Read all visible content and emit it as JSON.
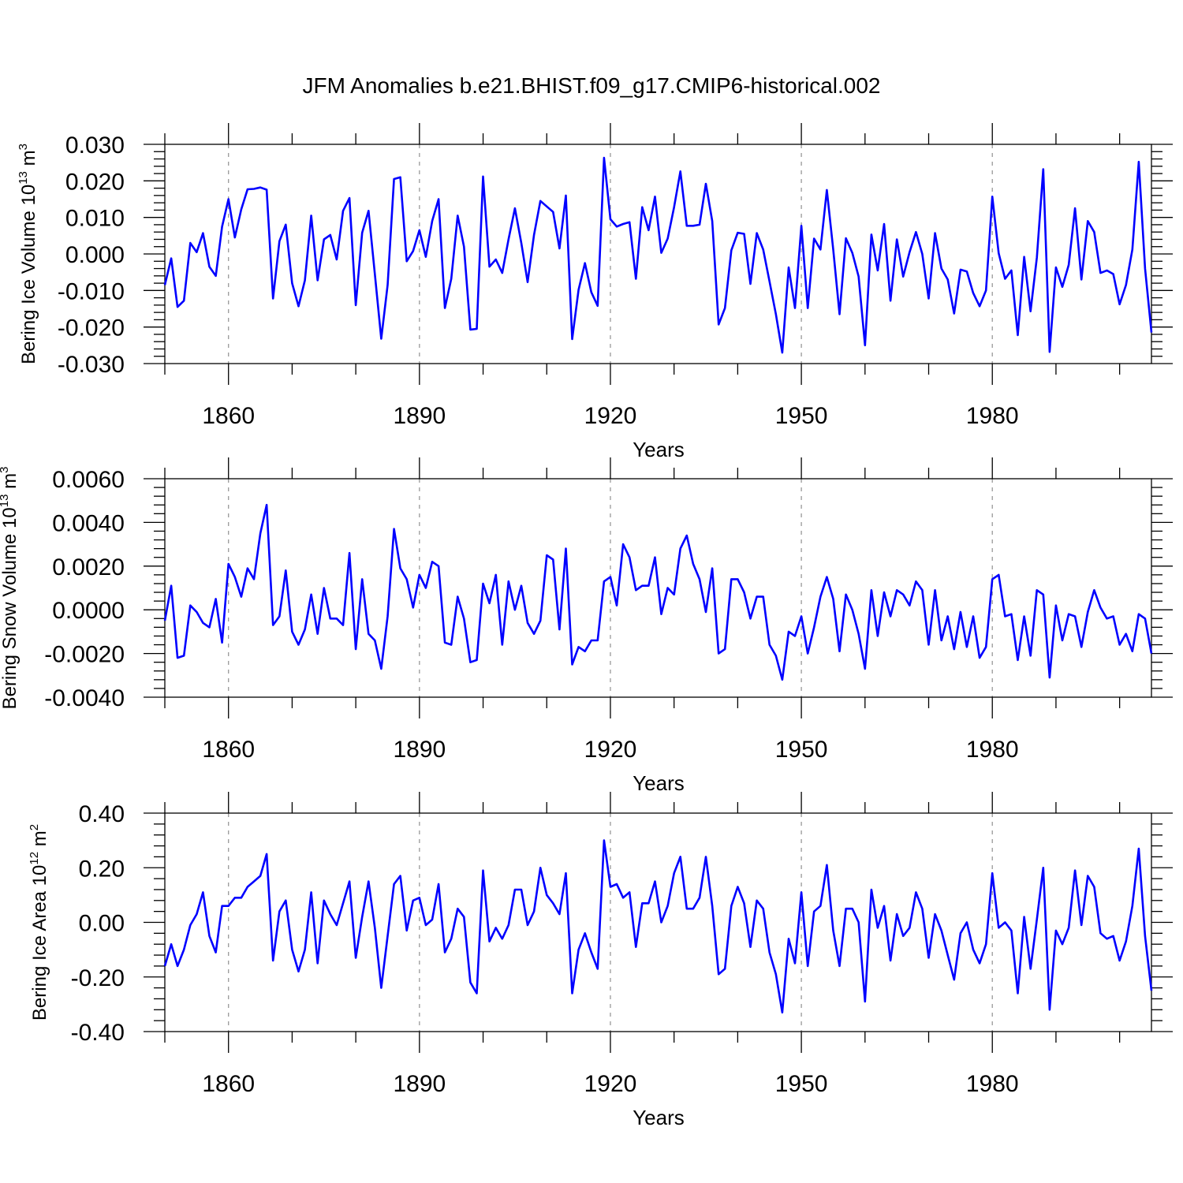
{
  "title": "JFM Anomalies b.e21.BHIST.f09_g17.CMIP6-historical.002",
  "chart_data": [
    {
      "type": "line",
      "id": "ice-volume",
      "ylabel": "Bering Ice Volume 10",
      "ylabel_sup": "13",
      "ylabel_unit": " m",
      "ylabel_unit_sup": "3",
      "xlabel": "Years",
      "xlim": [
        1850,
        2005
      ],
      "ylim": [
        -0.03,
        0.03
      ],
      "xticks": [
        1860,
        1890,
        1920,
        1950,
        1980
      ],
      "xtick_labels": [
        "1860",
        "1890",
        "1920",
        "1950",
        "1980"
      ],
      "yticks": [
        -0.03,
        -0.02,
        -0.01,
        0.0,
        0.01,
        0.02,
        0.03
      ],
      "ytick_labels": [
        "-0.030",
        "-0.020",
        "-0.010",
        "0.000",
        "0.010",
        "0.020",
        "0.030"
      ],
      "dashed_verticals": [
        1860,
        1890,
        1920,
        1950,
        1980
      ],
      "series": [
        {
          "name": "ice volume",
          "color": "#0000ff",
          "values": [
            -0.0085,
            -0.0012,
            -0.0145,
            -0.0128,
            0.003,
            0.0005,
            0.0057,
            -0.0035,
            -0.006,
            0.0075,
            0.015,
            0.0045,
            0.0122,
            0.0177,
            0.0178,
            0.0182,
            0.0176,
            -0.0122,
            0.0035,
            0.008,
            -0.008,
            -0.0143,
            -0.0072,
            0.0105,
            -0.0072,
            0.004,
            0.0052,
            -0.0015,
            0.0118,
            0.0153,
            -0.014,
            0.0058,
            0.0118,
            -0.0055,
            -0.0232,
            -0.0085,
            0.0205,
            0.021,
            -0.002,
            0.0008,
            0.0065,
            -0.0008,
            0.009,
            0.015,
            -0.0148,
            -0.0068,
            0.0105,
            0.002,
            -0.0207,
            -0.0205,
            0.0212,
            -0.0035,
            -0.0015,
            -0.0052,
            0.004,
            0.0125,
            0.003,
            -0.0077,
            0.0052,
            0.0145,
            0.013,
            0.0115,
            0.0015,
            0.016,
            -0.0233,
            -0.0098,
            -0.0025,
            -0.0105,
            -0.0142,
            0.0263,
            0.0095,
            0.0075,
            0.0082,
            0.0087,
            -0.0068,
            0.0128,
            0.0065,
            0.0157,
            0.0003,
            0.0042,
            0.0128,
            0.0226,
            0.0077,
            0.0077,
            0.008,
            0.0192,
            0.009,
            -0.0193,
            -0.0148,
            0.001,
            0.0058,
            0.0055,
            -0.0082,
            0.0057,
            0.0012,
            -0.0075,
            -0.0165,
            -0.027,
            -0.0037,
            -0.0148,
            0.0077,
            -0.0148,
            0.0042,
            0.0012,
            0.0175,
            0.0012,
            -0.0165,
            0.0043,
            0.0003,
            -0.0062,
            -0.025,
            0.0053,
            -0.0045,
            0.0082,
            -0.0128,
            0.004,
            -0.0062,
            0.0005,
            0.006,
            0.0,
            -0.0122,
            0.0057,
            -0.004,
            -0.007,
            -0.0163,
            -0.0043,
            -0.0048,
            -0.0107,
            -0.0143,
            -0.01,
            0.0157,
            0.0002,
            -0.0068,
            -0.0045,
            -0.0222,
            -0.0008,
            -0.0157,
            -0.001,
            0.0232,
            -0.0268,
            -0.0037,
            -0.009,
            -0.003,
            0.0125,
            -0.007,
            0.009,
            0.006,
            -0.0052,
            -0.0045,
            -0.0055,
            -0.0138,
            -0.0085,
            0.0012,
            0.0252,
            -0.004,
            -0.0215
          ]
        }
      ]
    },
    {
      "type": "line",
      "id": "snow-volume",
      "ylabel": "Bering Snow Volume 10",
      "ylabel_sup": "13",
      "ylabel_unit": " m",
      "ylabel_unit_sup": "3",
      "xlabel": "Years",
      "xlim": [
        1850,
        2005
      ],
      "ylim": [
        -0.004,
        0.006
      ],
      "xticks": [
        1860,
        1890,
        1920,
        1950,
        1980
      ],
      "xtick_labels": [
        "1860",
        "1890",
        "1920",
        "1950",
        "1980"
      ],
      "yticks": [
        -0.004,
        -0.002,
        0.0,
        0.002,
        0.004,
        0.006
      ],
      "ytick_labels": [
        "-0.0040",
        "-0.0020",
        "0.0000",
        "0.0020",
        "0.0040",
        "0.0060"
      ],
      "dashed_verticals": [
        1860,
        1890,
        1920,
        1950,
        1980
      ],
      "series": [
        {
          "name": "snow volume",
          "color": "#0000ff",
          "values": [
            -0.0005,
            0.0011,
            -0.0022,
            -0.0021,
            0.0002,
            -0.0001,
            -0.0006,
            -0.0008,
            0.0005,
            -0.0015,
            0.0021,
            0.0015,
            0.0006,
            0.0019,
            0.0014,
            0.0035,
            0.0048,
            -0.0007,
            -0.0003,
            0.0018,
            -0.001,
            -0.0016,
            -0.0009,
            0.0007,
            -0.0011,
            0.001,
            -0.0004,
            -0.0004,
            -0.0007,
            0.0026,
            -0.0018,
            0.0014,
            -0.0011,
            -0.0014,
            -0.0027,
            -0.0003,
            0.0037,
            0.0019,
            0.0014,
            0.0001,
            0.0016,
            0.001,
            0.0022,
            0.002,
            -0.0015,
            -0.0016,
            0.0006,
            -0.0004,
            -0.0024,
            -0.0023,
            0.0012,
            0.0003,
            0.0016,
            -0.0016,
            0.0013,
            0.0,
            0.0011,
            -0.0006,
            -0.0011,
            -0.0005,
            0.0025,
            0.0023,
            -0.0009,
            0.0028,
            -0.0025,
            -0.0017,
            -0.0019,
            -0.0014,
            -0.0014,
            0.0013,
            0.0015,
            0.0002,
            0.003,
            0.0024,
            0.0009,
            0.0011,
            0.0011,
            0.0024,
            -0.0002,
            0.001,
            0.0007,
            0.0028,
            0.0034,
            0.0021,
            0.0014,
            -0.0001,
            0.0019,
            -0.002,
            -0.0018,
            0.0014,
            0.0014,
            0.0008,
            -0.0004,
            0.0006,
            0.0006,
            -0.0016,
            -0.0021,
            -0.0032,
            -0.001,
            -0.0012,
            -0.0003,
            -0.002,
            -0.0008,
            0.0006,
            0.0015,
            0.0005,
            -0.0019,
            0.0007,
            0.0,
            -0.0011,
            -0.0027,
            0.0009,
            -0.0012,
            0.0008,
            -0.0003,
            0.0009,
            0.0007,
            0.0002,
            0.0013,
            0.0009,
            -0.0016,
            0.0009,
            -0.0014,
            -0.0003,
            -0.0018,
            -0.0001,
            -0.0017,
            -0.0003,
            -0.0022,
            -0.0017,
            0.0014,
            0.0016,
            -0.0003,
            -0.0002,
            -0.0023,
            -0.0003,
            -0.0021,
            0.0009,
            0.0007,
            -0.0031,
            0.0002,
            -0.0014,
            -0.0002,
            -0.0003,
            -0.0017,
            -0.0001,
            0.0009,
            0.0001,
            -0.0004,
            -0.0003,
            -0.0016,
            -0.0011,
            -0.0019,
            -0.0002,
            -0.0004,
            -0.002
          ]
        }
      ]
    },
    {
      "type": "line",
      "id": "ice-area",
      "ylabel": "Bering Ice Area 10",
      "ylabel_sup": "12",
      "ylabel_unit": " m",
      "ylabel_unit_sup": "2",
      "xlabel": "Years",
      "xlim": [
        1850,
        2005
      ],
      "ylim": [
        -0.4,
        0.4
      ],
      "xticks": [
        1860,
        1890,
        1920,
        1950,
        1980
      ],
      "xtick_labels": [
        "1860",
        "1890",
        "1920",
        "1950",
        "1980"
      ],
      "yticks": [
        -0.4,
        -0.2,
        0.0,
        0.2,
        0.4
      ],
      "ytick_labels": [
        "-0.40",
        "-0.20",
        "0.00",
        "0.20",
        "0.40"
      ],
      "dashed_verticals": [
        1860,
        1890,
        1920,
        1950,
        1980
      ],
      "series": [
        {
          "name": "ice area",
          "color": "#0000ff",
          "values": [
            -0.16,
            -0.08,
            -0.16,
            -0.1,
            -0.01,
            0.03,
            0.11,
            -0.05,
            -0.11,
            0.06,
            0.06,
            0.09,
            0.09,
            0.13,
            0.15,
            0.17,
            0.25,
            -0.14,
            0.04,
            0.08,
            -0.1,
            -0.18,
            -0.1,
            0.11,
            -0.15,
            0.08,
            0.03,
            -0.01,
            0.07,
            0.15,
            -0.13,
            0.02,
            0.15,
            -0.02,
            -0.24,
            -0.05,
            0.14,
            0.17,
            -0.03,
            0.08,
            0.09,
            -0.01,
            0.01,
            0.14,
            -0.11,
            -0.06,
            0.05,
            0.02,
            -0.22,
            -0.26,
            0.19,
            -0.07,
            -0.02,
            -0.06,
            -0.01,
            0.12,
            0.12,
            -0.01,
            0.04,
            0.2,
            0.1,
            0.07,
            0.03,
            0.18,
            -0.26,
            -0.1,
            -0.04,
            -0.11,
            -0.17,
            0.3,
            0.13,
            0.14,
            0.09,
            0.11,
            -0.09,
            0.07,
            0.07,
            0.15,
            0.0,
            0.06,
            0.18,
            0.24,
            0.05,
            0.05,
            0.09,
            0.24,
            0.06,
            -0.19,
            -0.17,
            0.06,
            0.13,
            0.07,
            -0.09,
            0.08,
            0.05,
            -0.11,
            -0.19,
            -0.33,
            -0.06,
            -0.15,
            0.11,
            -0.16,
            0.04,
            0.06,
            0.21,
            -0.03,
            -0.16,
            0.05,
            0.05,
            0.0,
            -0.29,
            0.12,
            -0.02,
            0.06,
            -0.14,
            0.03,
            -0.05,
            -0.02,
            0.11,
            0.05,
            -0.13,
            0.03,
            -0.03,
            -0.12,
            -0.21,
            -0.04,
            0.0,
            -0.1,
            -0.15,
            -0.08,
            0.18,
            -0.02,
            0.0,
            -0.03,
            -0.26,
            0.02,
            -0.17,
            0.01,
            0.2,
            -0.32,
            -0.03,
            -0.08,
            -0.02,
            0.19,
            -0.01,
            0.17,
            0.13,
            -0.04,
            -0.06,
            -0.05,
            -0.14,
            -0.07,
            0.06,
            0.27,
            -0.05,
            -0.25
          ]
        }
      ]
    }
  ]
}
